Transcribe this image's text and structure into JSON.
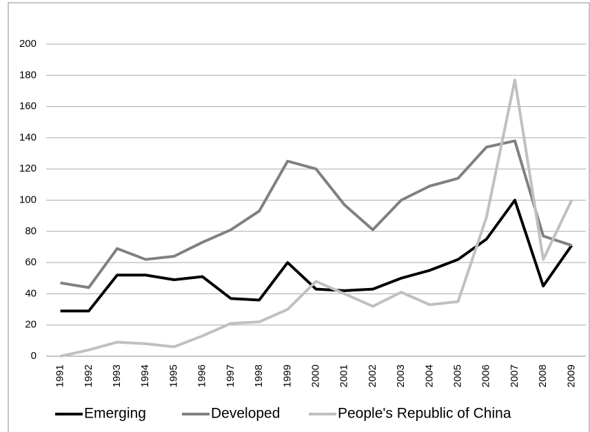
{
  "chart_data": {
    "type": "line",
    "categories": [
      "1991",
      "1992",
      "1993",
      "1994",
      "1995",
      "1996",
      "1997",
      "1998",
      "1999",
      "2000",
      "2001",
      "2002",
      "2003",
      "2004",
      "2005",
      "2006",
      "2007",
      "2008",
      "2009"
    ],
    "series": [
      {
        "name": "Emerging",
        "color": "#000000",
        "values": [
          29,
          29,
          52,
          52,
          49,
          51,
          37,
          36,
          60,
          43,
          42,
          43,
          50,
          55,
          62,
          75,
          100,
          45,
          71
        ]
      },
      {
        "name": "Developed",
        "color": "#808080",
        "values": [
          47,
          44,
          69,
          62,
          64,
          73,
          81,
          93,
          125,
          120,
          97,
          81,
          100,
          109,
          114,
          134,
          138,
          77,
          71
        ]
      },
      {
        "name": "People's Republic of China",
        "color": "#c0c0c0",
        "values": [
          0,
          4,
          9,
          8,
          6,
          13,
          21,
          22,
          30,
          48,
          40,
          32,
          41,
          33,
          35,
          89,
          177,
          62,
          100
        ]
      }
    ],
    "ylim": [
      0,
      200
    ],
    "yticks": [
      0,
      20,
      40,
      60,
      80,
      100,
      120,
      140,
      160,
      180,
      200
    ],
    "grid": true,
    "legend": "bottom"
  }
}
